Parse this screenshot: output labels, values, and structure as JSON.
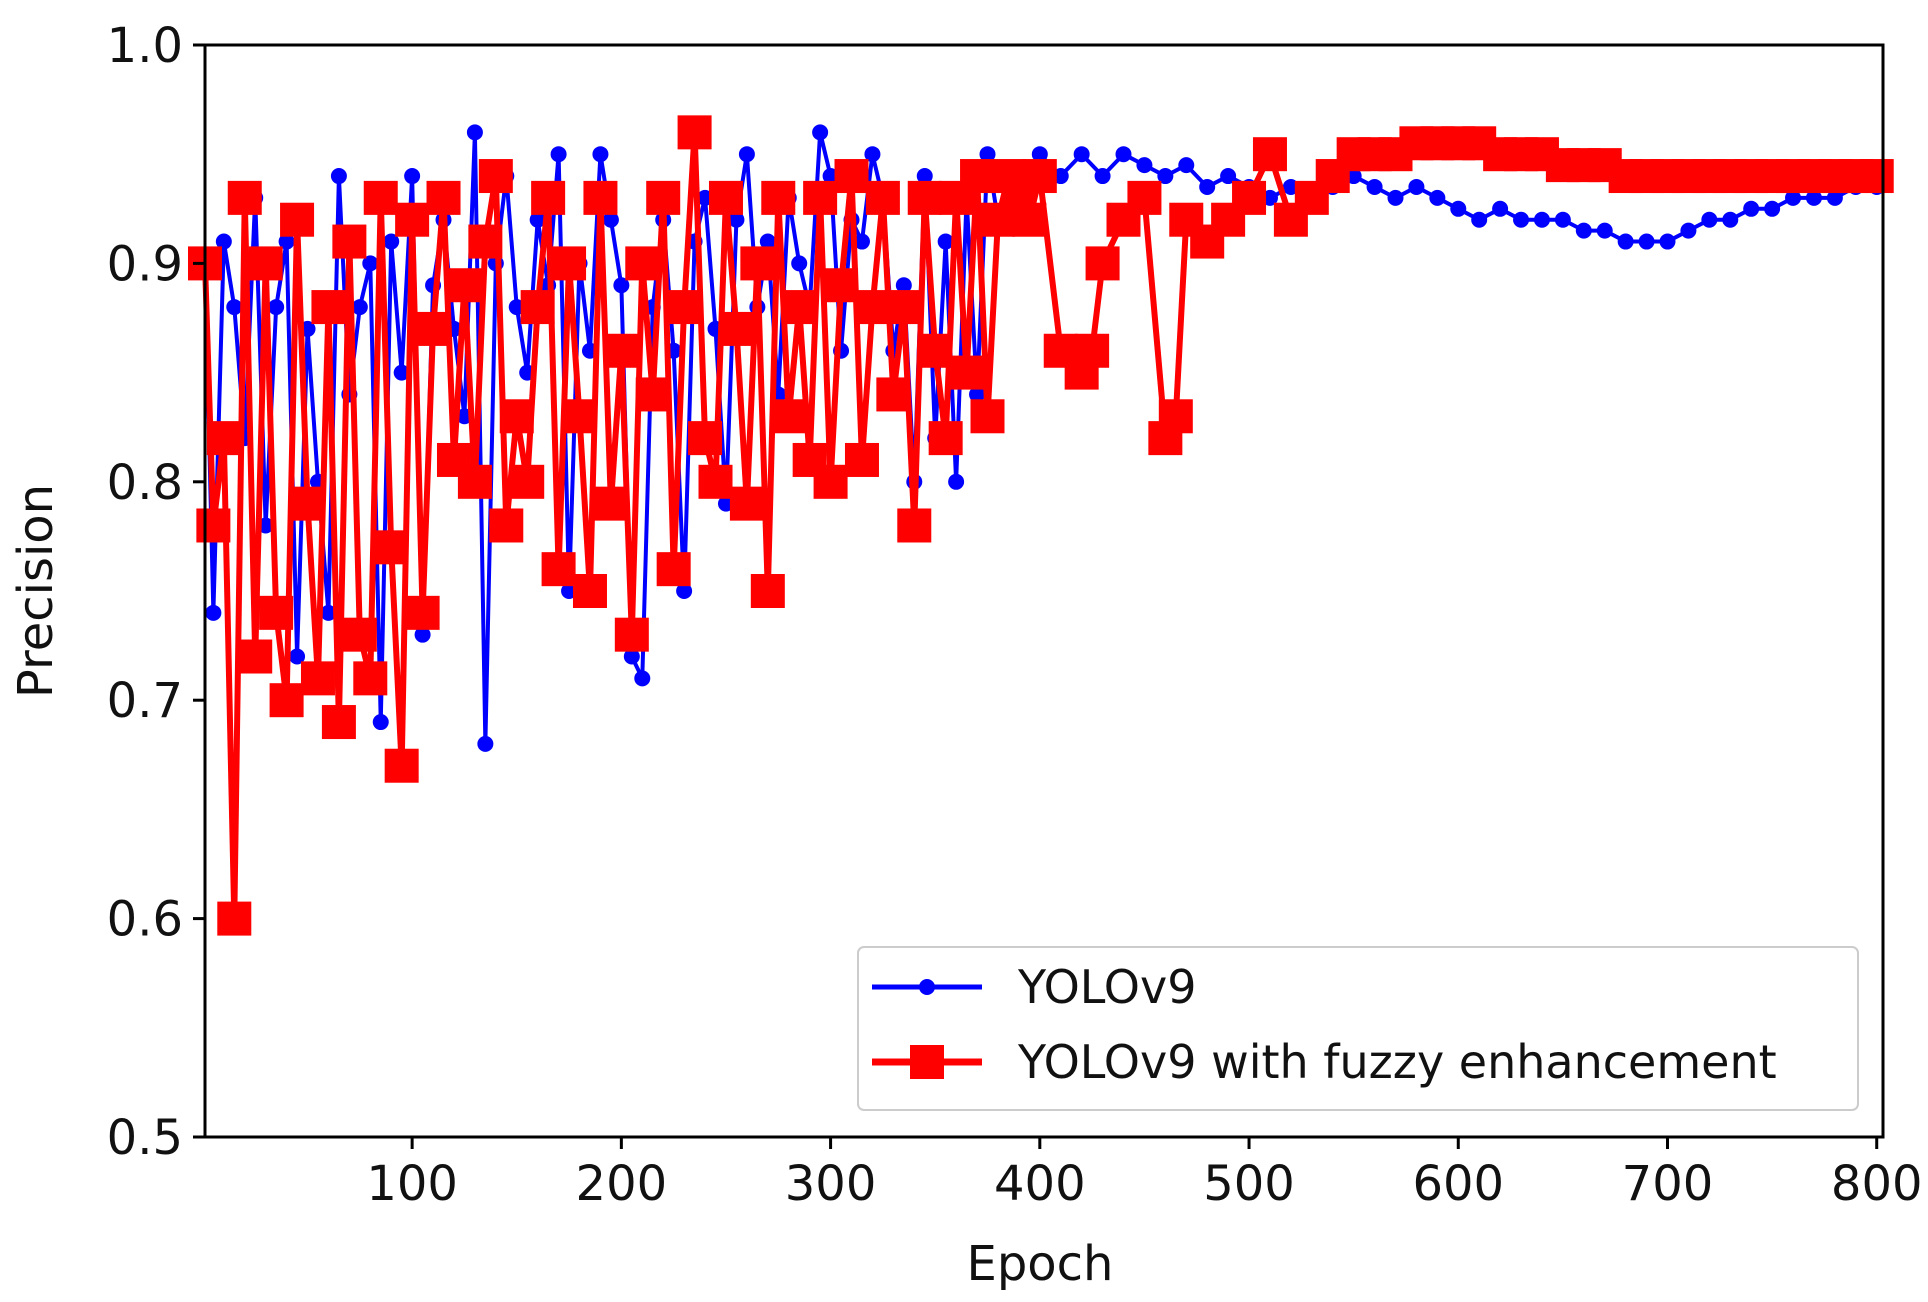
{
  "chart_data": {
    "type": "line",
    "title": "",
    "xlabel": "Epoch",
    "ylabel": "Precision",
    "xlim": [
      1,
      803
    ],
    "ylim": [
      0.5,
      1.0
    ],
    "grid": false,
    "legend_position": "bottom-right",
    "x_ticks": [
      100,
      200,
      300,
      400,
      500,
      600,
      700,
      800
    ],
    "x_tick_labels": [
      "100",
      "200",
      "300",
      "400",
      "500",
      "600",
      "700",
      "800"
    ],
    "y_ticks": [
      0.5,
      0.6,
      0.7,
      0.8,
      0.9,
      1.0
    ],
    "y_tick_labels": [
      "0.5",
      "0.6",
      "0.7",
      "0.8",
      "0.9",
      "1.0"
    ],
    "series": [
      {
        "name": "YOLOv9",
        "color": "#0000ff",
        "marker": "circle",
        "x": [
          1,
          5,
          10,
          15,
          20,
          25,
          30,
          35,
          40,
          45,
          50,
          55,
          60,
          65,
          70,
          75,
          80,
          85,
          90,
          95,
          100,
          105,
          110,
          115,
          120,
          125,
          130,
          135,
          140,
          145,
          150,
          155,
          160,
          165,
          170,
          175,
          180,
          185,
          190,
          195,
          200,
          205,
          210,
          215,
          220,
          225,
          230,
          235,
          240,
          245,
          250,
          255,
          260,
          265,
          270,
          275,
          280,
          285,
          290,
          295,
          300,
          305,
          310,
          315,
          320,
          325,
          330,
          335,
          340,
          345,
          350,
          355,
          360,
          365,
          370,
          375,
          380,
          385,
          390,
          395,
          400,
          410,
          420,
          430,
          440,
          450,
          460,
          470,
          480,
          490,
          500,
          510,
          520,
          530,
          540,
          550,
          560,
          570,
          580,
          590,
          600,
          610,
          620,
          630,
          640,
          650,
          660,
          670,
          680,
          690,
          700,
          710,
          720,
          730,
          740,
          750,
          760,
          770,
          780,
          790,
          800
        ],
        "y": [
          0.9,
          0.74,
          0.91,
          0.88,
          0.82,
          0.93,
          0.78,
          0.88,
          0.91,
          0.72,
          0.87,
          0.8,
          0.74,
          0.94,
          0.84,
          0.88,
          0.9,
          0.69,
          0.91,
          0.85,
          0.94,
          0.73,
          0.89,
          0.92,
          0.87,
          0.83,
          0.96,
          0.68,
          0.9,
          0.94,
          0.88,
          0.85,
          0.92,
          0.89,
          0.95,
          0.75,
          0.9,
          0.86,
          0.95,
          0.92,
          0.89,
          0.72,
          0.71,
          0.88,
          0.92,
          0.86,
          0.75,
          0.91,
          0.93,
          0.87,
          0.79,
          0.92,
          0.95,
          0.88,
          0.91,
          0.84,
          0.93,
          0.9,
          0.88,
          0.96,
          0.94,
          0.86,
          0.92,
          0.91,
          0.95,
          0.93,
          0.86,
          0.89,
          0.8,
          0.94,
          0.82,
          0.91,
          0.8,
          0.93,
          0.84,
          0.95,
          0.92,
          0.94,
          0.93,
          0.94,
          0.95,
          0.94,
          0.95,
          0.94,
          0.95,
          0.945,
          0.94,
          0.945,
          0.935,
          0.94,
          0.935,
          0.93,
          0.935,
          0.93,
          0.935,
          0.94,
          0.935,
          0.93,
          0.935,
          0.93,
          0.925,
          0.92,
          0.925,
          0.92,
          0.92,
          0.92,
          0.915,
          0.915,
          0.91,
          0.91,
          0.91,
          0.915,
          0.92,
          0.92,
          0.925,
          0.925,
          0.93,
          0.93,
          0.93,
          0.935,
          0.935
        ]
      },
      {
        "name": "YOLOv9 with fuzzy enhancement",
        "color": "#ff0000",
        "marker": "square",
        "x": [
          1,
          5,
          10,
          15,
          20,
          25,
          30,
          35,
          40,
          45,
          50,
          55,
          60,
          65,
          70,
          75,
          80,
          85,
          90,
          95,
          100,
          105,
          110,
          115,
          120,
          125,
          130,
          135,
          140,
          145,
          150,
          155,
          160,
          165,
          170,
          175,
          180,
          185,
          190,
          195,
          200,
          205,
          210,
          215,
          220,
          225,
          230,
          235,
          240,
          245,
          250,
          255,
          260,
          265,
          270,
          275,
          280,
          285,
          290,
          295,
          300,
          305,
          310,
          315,
          320,
          325,
          330,
          335,
          340,
          345,
          350,
          355,
          360,
          365,
          370,
          375,
          380,
          385,
          390,
          395,
          400,
          410,
          420,
          425,
          430,
          440,
          450,
          460,
          465,
          470,
          480,
          490,
          500,
          510,
          520,
          530,
          540,
          550,
          560,
          570,
          580,
          590,
          600,
          610,
          620,
          630,
          640,
          650,
          660,
          670,
          680,
          690,
          700,
          710,
          720,
          730,
          740,
          750,
          760,
          770,
          780,
          790,
          800
        ],
        "y": [
          0.9,
          0.78,
          0.82,
          0.6,
          0.93,
          0.72,
          0.9,
          0.74,
          0.7,
          0.92,
          0.79,
          0.71,
          0.88,
          0.69,
          0.91,
          0.73,
          0.71,
          0.93,
          0.77,
          0.67,
          0.92,
          0.74,
          0.87,
          0.93,
          0.81,
          0.89,
          0.8,
          0.91,
          0.94,
          0.78,
          0.83,
          0.8,
          0.88,
          0.93,
          0.76,
          0.9,
          0.83,
          0.75,
          0.93,
          0.79,
          0.86,
          0.73,
          0.9,
          0.84,
          0.93,
          0.76,
          0.88,
          0.96,
          0.82,
          0.8,
          0.93,
          0.87,
          0.79,
          0.9,
          0.75,
          0.93,
          0.83,
          0.88,
          0.81,
          0.93,
          0.8,
          0.89,
          0.94,
          0.81,
          0.88,
          0.93,
          0.84,
          0.88,
          0.78,
          0.93,
          0.86,
          0.82,
          0.93,
          0.85,
          0.94,
          0.83,
          0.92,
          0.94,
          0.93,
          0.92,
          0.94,
          0.86,
          0.85,
          0.86,
          0.9,
          0.92,
          0.93,
          0.82,
          0.83,
          0.92,
          0.91,
          0.92,
          0.93,
          0.95,
          0.92,
          0.93,
          0.94,
          0.95,
          0.95,
          0.95,
          0.955,
          0.955,
          0.955,
          0.955,
          0.95,
          0.95,
          0.95,
          0.945,
          0.945,
          0.945,
          0.94,
          0.94,
          0.94,
          0.94,
          0.94,
          0.94,
          0.94,
          0.94,
          0.94,
          0.94,
          0.94,
          0.94,
          0.94
        ]
      }
    ]
  }
}
